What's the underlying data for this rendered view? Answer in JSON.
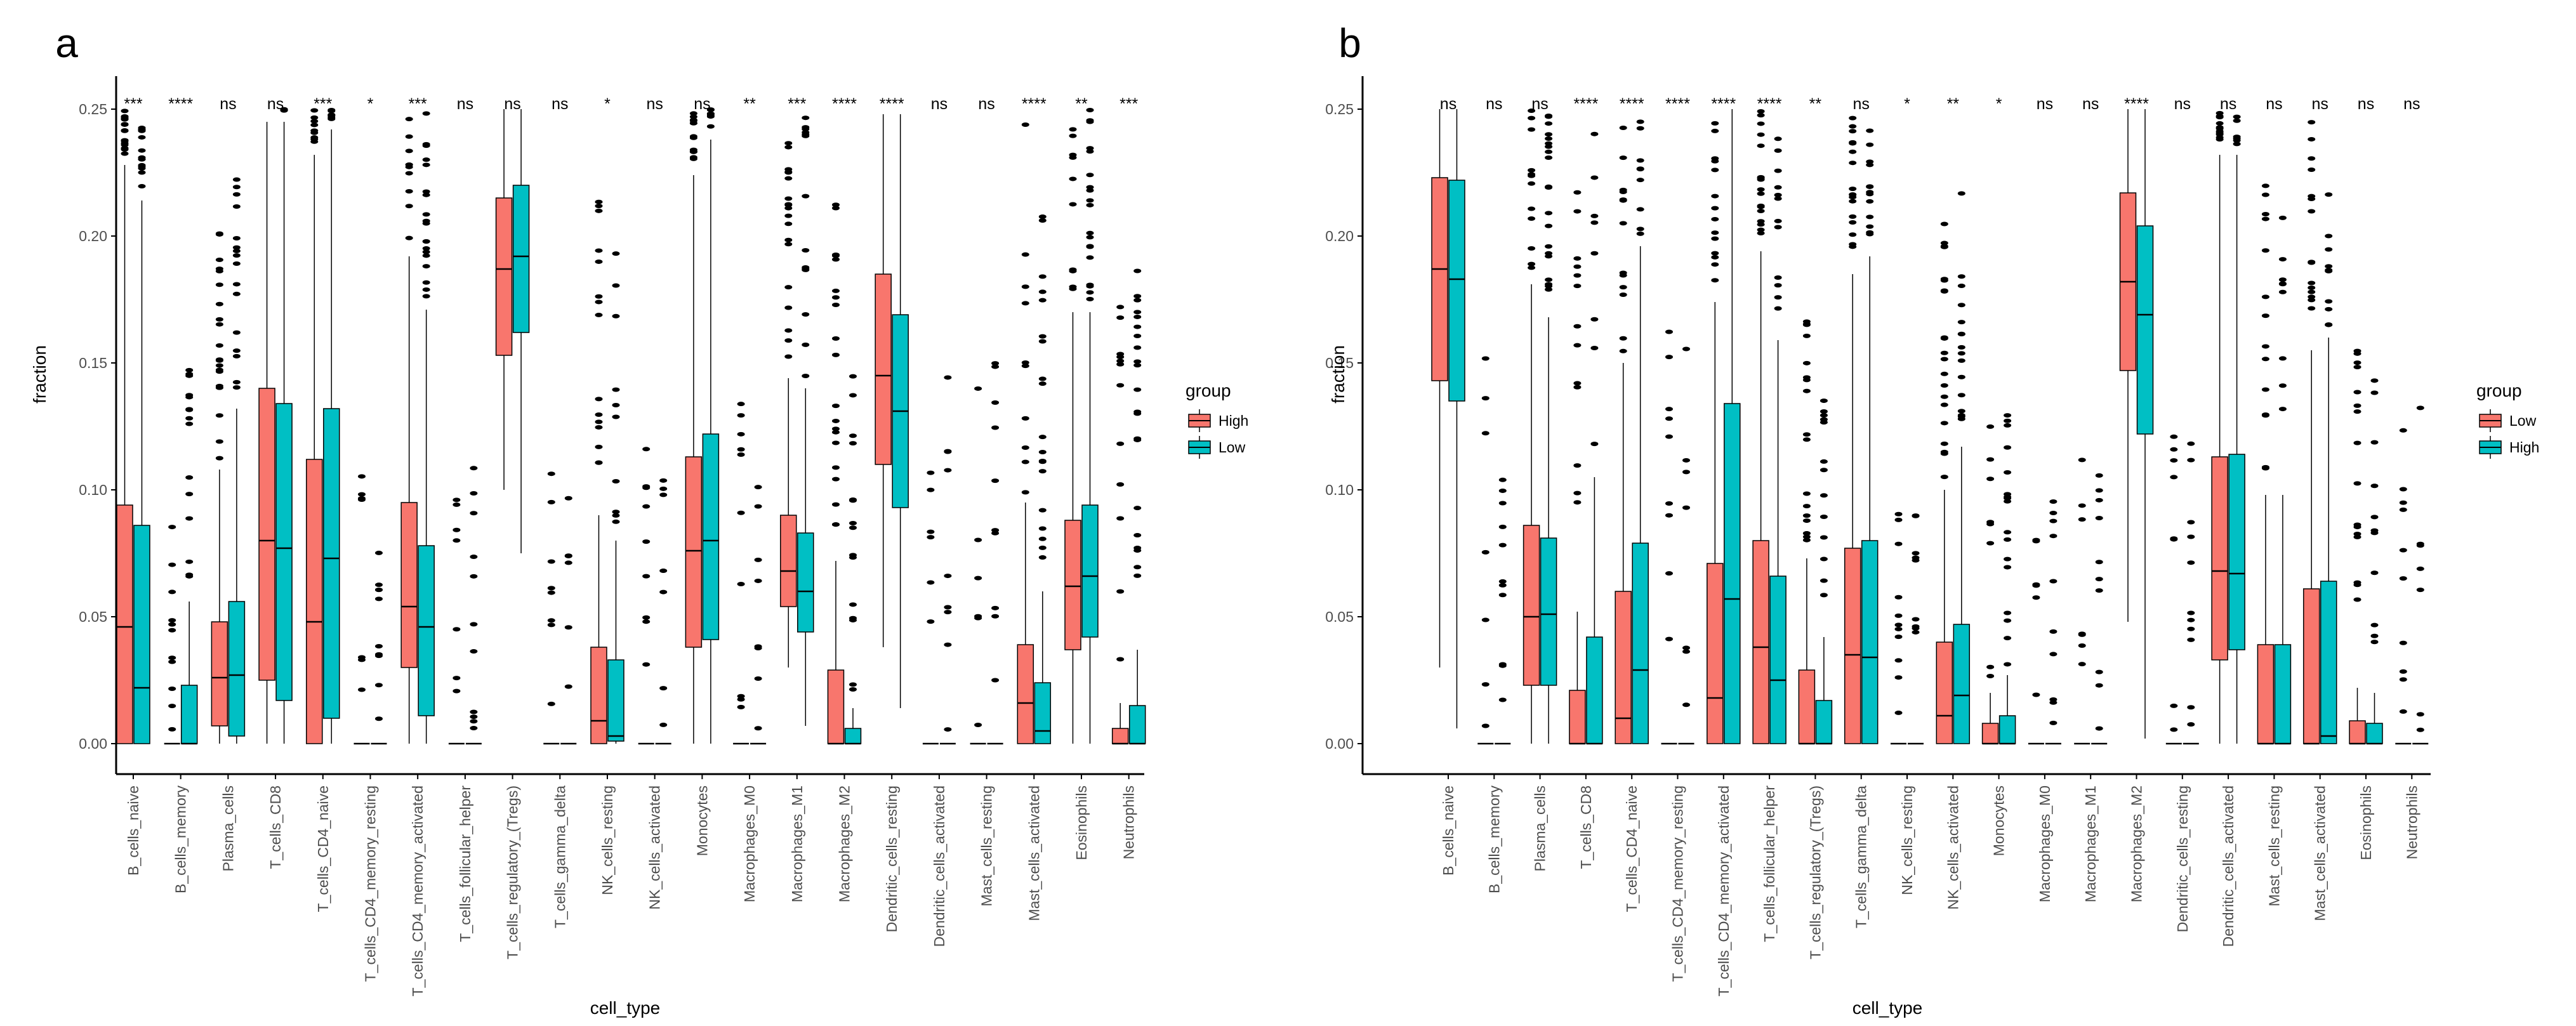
{
  "colors": {
    "first": "#f8766d",
    "second": "#00bfc4",
    "outline": "#000000",
    "axis": "#000000",
    "tick_text": "#4d4d4d"
  },
  "chart_data": [
    {
      "type": "boxplot",
      "panel_label": "a",
      "xlabel": "cell_type",
      "ylabel": "fraction",
      "ylim": [
        0,
        0.25
      ],
      "yticks": [
        "0.00",
        "0.05",
        "0.10",
        "0.15",
        "0.20",
        "0.25"
      ],
      "grid": false,
      "legend": {
        "title": "group",
        "position": "right",
        "entries": [
          "High",
          "Low"
        ]
      },
      "categories": [
        "B_cells_naive",
        "B_cells_memory",
        "Plasma_cells",
        "T_cells_CD8",
        "T_cells_CD4_naive",
        "T_cells_CD4_memory_resting",
        "T_cells_CD4_memory_activated",
        "T_cells_follicular_helper",
        "T_cells_regulatory_(Tregs)",
        "T_cells_gamma_delta",
        "NK_cells_resting",
        "NK_cells_activated",
        "Monocytes",
        "Macrophages_M0",
        "Macrophages_M1",
        "Macrophages_M2",
        "Dendritic_cells_resting",
        "Dendritic_cells_activated",
        "Mast_cells_resting",
        "Mast_cells_activated",
        "Eosinophils",
        "Neutrophils"
      ],
      "significance": [
        "***",
        "****",
        "ns",
        "ns",
        "***",
        "*",
        "***",
        "ns",
        "ns",
        "ns",
        "*",
        "ns",
        "ns",
        "**",
        "***",
        "****",
        "****",
        "ns",
        "ns",
        "****",
        "**",
        "***"
      ],
      "series": [
        {
          "name": "High",
          "boxes": [
            [
              0,
              0,
              0.046,
              0.094,
              0.228
            ],
            [
              0,
              0,
              0,
              0,
              0
            ],
            [
              0,
              0.007,
              0.026,
              0.048,
              0.108
            ],
            [
              0,
              0.025,
              0.08,
              0.14,
              0.245
            ],
            [
              0,
              0,
              0.048,
              0.112,
              0.232
            ],
            [
              0,
              0,
              0,
              0,
              0
            ],
            [
              0,
              0.03,
              0.054,
              0.095,
              0.192
            ],
            [
              0,
              0,
              0,
              0,
              0
            ],
            [
              0.1,
              0.153,
              0.187,
              0.215,
              0.25
            ],
            [
              0,
              0,
              0,
              0,
              0
            ],
            [
              0,
              0,
              0.009,
              0.038,
              0.09
            ],
            [
              0,
              0,
              0,
              0,
              0
            ],
            [
              0,
              0.038,
              0.076,
              0.113,
              0.224
            ],
            [
              0,
              0,
              0,
              0,
              0
            ],
            [
              0.03,
              0.054,
              0.068,
              0.09,
              0.144
            ],
            [
              0,
              0,
              0,
              0.029,
              0.072
            ],
            [
              0.038,
              0.11,
              0.145,
              0.185,
              0.248
            ],
            [
              0,
              0,
              0,
              0,
              0
            ],
            [
              0,
              0,
              0,
              0,
              0
            ],
            [
              0,
              0,
              0.016,
              0.039,
              0.095
            ],
            [
              0,
              0.037,
              0.062,
              0.088,
              0.17
            ],
            [
              0,
              0,
              0,
              0.006,
              0.016
            ]
          ]
        },
        {
          "name": "Low",
          "boxes": [
            [
              0,
              0,
              0.022,
              0.086,
              0.214
            ],
            [
              0,
              0,
              0,
              0.023,
              0.056
            ],
            [
              0,
              0.003,
              0.027,
              0.056,
              0.132
            ],
            [
              0,
              0.017,
              0.077,
              0.134,
              0.245
            ],
            [
              0,
              0.01,
              0.073,
              0.132,
              0.242
            ],
            [
              0,
              0,
              0,
              0,
              0
            ],
            [
              0,
              0.011,
              0.046,
              0.078,
              0.171
            ],
            [
              0,
              0,
              0,
              0,
              0
            ],
            [
              0.075,
              0.162,
              0.192,
              0.22,
              0.25
            ],
            [
              0,
              0,
              0,
              0,
              0
            ],
            [
              0,
              0.001,
              0.003,
              0.033,
              0.08
            ],
            [
              0,
              0,
              0,
              0,
              0
            ],
            [
              0,
              0.041,
              0.08,
              0.122,
              0.238
            ],
            [
              0,
              0,
              0,
              0,
              0
            ],
            [
              0.007,
              0.044,
              0.06,
              0.083,
              0.14
            ],
            [
              0,
              0,
              0,
              0.006,
              0.014
            ],
            [
              0.014,
              0.093,
              0.131,
              0.169,
              0.248
            ],
            [
              0,
              0,
              0,
              0,
              0
            ],
            [
              0,
              0,
              0,
              0,
              0
            ],
            [
              0,
              0,
              0.005,
              0.024,
              0.06
            ],
            [
              0,
              0.042,
              0.066,
              0.094,
              0.17
            ],
            [
              0,
              0,
              0,
              0.015,
              0.037
            ]
          ]
        }
      ]
    },
    {
      "type": "boxplot",
      "panel_label": "b",
      "xlabel": "cell_type",
      "ylabel": "fraction",
      "ylim": [
        0,
        0.25
      ],
      "yticks": [
        "0.00",
        "0.05",
        "0.10",
        "0.15",
        "0.20",
        "0.25"
      ],
      "grid": false,
      "legend": {
        "title": "group",
        "position": "right",
        "entries": [
          "Low",
          "High"
        ]
      },
      "categories": [
        "B_cells_naive",
        "B_cells_memory",
        "Plasma_cells",
        "T_cells_CD8",
        "T_cells_CD4_naive",
        "T_cells_CD4_memory_resting",
        "T_cells_CD4_memory_activated",
        "T_cells_follicular_helper",
        "T_cells_regulatory_(Tregs)",
        "T_cells_gamma_delta",
        "NK_cells_resting",
        "NK_cells_activated",
        "Monocytes",
        "Macrophages_M0",
        "Macrophages_M1",
        "Macrophages_M2",
        "Dendritic_cells_resting",
        "Dendritic_cells_activated",
        "Mast_cells_resting",
        "Mast_cells_activated",
        "Eosinophils",
        "Neutrophils"
      ],
      "significance": [
        "ns",
        "ns",
        "ns",
        "****",
        "****",
        "****",
        "****",
        "****",
        "**",
        "ns",
        "*",
        "**",
        "*",
        "ns",
        "ns",
        "****",
        "ns",
        "ns",
        "ns",
        "ns",
        "ns",
        "ns"
      ],
      "series": [
        {
          "name": "Low",
          "boxes": [
            [
              0.03,
              0.143,
              0.187,
              0.223,
              0.25
            ],
            [
              0,
              0,
              0,
              0,
              0
            ],
            [
              0,
              0.023,
              0.05,
              0.086,
              0.181
            ],
            [
              0,
              0,
              0,
              0.021,
              0.052
            ],
            [
              0,
              0,
              0.01,
              0.06,
              0.15
            ],
            [
              0,
              0,
              0,
              0,
              0
            ],
            [
              0,
              0,
              0.018,
              0.071,
              0.174
            ],
            [
              0,
              0,
              0.038,
              0.08,
              0.194
            ],
            [
              0,
              0,
              0,
              0.029,
              0.073
            ],
            [
              0,
              0,
              0.035,
              0.077,
              0.185
            ],
            [
              0,
              0,
              0,
              0,
              0
            ],
            [
              0,
              0,
              0.011,
              0.04,
              0.1
            ],
            [
              0,
              0,
              0,
              0.008,
              0.02
            ],
            [
              0,
              0,
              0,
              0,
              0
            ],
            [
              0,
              0,
              0,
              0,
              0
            ],
            [
              0.048,
              0.147,
              0.182,
              0.217,
              0.25
            ],
            [
              0,
              0,
              0,
              0,
              0
            ],
            [
              0,
              0.033,
              0.068,
              0.113,
              0.232
            ],
            [
              0,
              0,
              0,
              0.039,
              0.098
            ],
            [
              0,
              0,
              0,
              0.061,
              0.155
            ],
            [
              0,
              0,
              0,
              0.009,
              0.022
            ],
            [
              0,
              0,
              0,
              0,
              0
            ]
          ]
        },
        {
          "name": "High",
          "boxes": [
            [
              0.006,
              0.135,
              0.183,
              0.222,
              0.25
            ],
            [
              0,
              0,
              0,
              0,
              0
            ],
            [
              0,
              0.023,
              0.051,
              0.081,
              0.168
            ],
            [
              0,
              0,
              0,
              0.042,
              0.105
            ],
            [
              0,
              0,
              0.029,
              0.079,
              0.196
            ],
            [
              0,
              0,
              0,
              0,
              0
            ],
            [
              0,
              0,
              0.057,
              0.134,
              0.25
            ],
            [
              0,
              0,
              0.025,
              0.066,
              0.159
            ],
            [
              0,
              0,
              0,
              0.017,
              0.042
            ],
            [
              0,
              0,
              0.034,
              0.08,
              0.192
            ],
            [
              0,
              0,
              0,
              0,
              0
            ],
            [
              0,
              0,
              0.019,
              0.047,
              0.117
            ],
            [
              0,
              0,
              0,
              0.011,
              0.027
            ],
            [
              0,
              0,
              0,
              0,
              0
            ],
            [
              0,
              0,
              0,
              0,
              0
            ],
            [
              0.002,
              0.122,
              0.169,
              0.204,
              0.25
            ],
            [
              0,
              0,
              0,
              0,
              0
            ],
            [
              0,
              0.037,
              0.067,
              0.114,
              0.232
            ],
            [
              0,
              0,
              0,
              0.039,
              0.098
            ],
            [
              0,
              0,
              0.003,
              0.064,
              0.16
            ],
            [
              0,
              0,
              0,
              0.008,
              0.02
            ],
            [
              0,
              0,
              0,
              0,
              0
            ]
          ]
        }
      ]
    }
  ]
}
